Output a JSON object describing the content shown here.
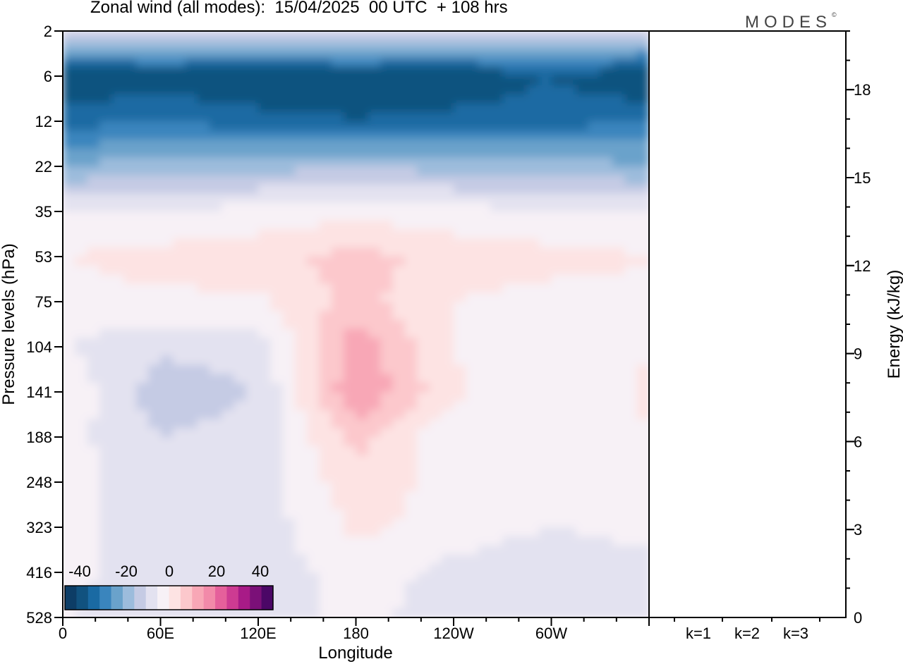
{
  "header": {
    "title": "Zonal wind (all modes):  15/04/2025  00 UTC  + 108 hrs",
    "logo": "MODES",
    "logo_mark": "©"
  },
  "chart_data": [
    {
      "type": "heatmap",
      "title": "Zonal wind (all modes):  15/04/2025  00 UTC  + 108 hrs",
      "xlabel": "Longitude",
      "ylabel": "Pressure levels (hPa)",
      "x_tick_labels": [
        "0",
        "60E",
        "120E",
        "180",
        "120W",
        "60W"
      ],
      "y_tick_labels": [
        "2",
        "6",
        "12",
        "22",
        "35",
        "53",
        "75",
        "104",
        "141",
        "188",
        "248",
        "323",
        "416",
        "528"
      ],
      "y_order": "top-to-bottom",
      "colorbar": {
        "tick_labels": [
          "-40",
          "-20",
          "0",
          "20",
          "40"
        ],
        "range": [
          -40,
          40
        ],
        "step": 5,
        "colors": [
          "#0d3d66",
          "#11527f",
          "#1a6aa3",
          "#3a85bd",
          "#6aa2cb",
          "#9cbcdc",
          "#c5cbe4",
          "#e3e2f0",
          "#f7f1f6",
          "#fde3e3",
          "#fcc8cc",
          "#f8a7b6",
          "#f28aa9",
          "#e5609b",
          "#cd3b92",
          "#a81b87",
          "#7b1078",
          "#4b0766"
        ]
      },
      "field": [
        {
          "level": "2",
          "description": "near zero to weak easterly",
          "values": [
            -5,
            -5,
            -5,
            -5,
            -5,
            -5,
            -5
          ]
        },
        {
          "level": "6",
          "values": [
            -35,
            -33,
            -35,
            -33,
            -35,
            -30,
            -36
          ]
        },
        {
          "level": "12",
          "values": [
            -27,
            -25,
            -28,
            -30,
            -28,
            -27,
            -25
          ]
        },
        {
          "level": "22",
          "values": [
            -15,
            -12,
            -12,
            -10,
            -12,
            -12,
            -15
          ]
        },
        {
          "level": "35",
          "values": [
            0,
            0,
            2,
            3,
            2,
            0,
            0
          ]
        },
        {
          "level": "53",
          "values": [
            5,
            7,
            8,
            12,
            8,
            7,
            5
          ]
        },
        {
          "level": "75",
          "values": [
            3,
            4,
            4,
            12,
            5,
            3,
            4
          ]
        },
        {
          "level": "104",
          "values": [
            0,
            -4,
            -3,
            18,
            5,
            0,
            5
          ]
        },
        {
          "level": "141",
          "values": [
            4,
            -8,
            -5,
            20,
            6,
            0,
            6
          ]
        },
        {
          "level": "188",
          "values": [
            2,
            -5,
            -3,
            12,
            0,
            0,
            5
          ]
        },
        {
          "level": "248",
          "values": [
            2,
            -3,
            -2,
            8,
            3,
            0,
            4
          ]
        },
        {
          "level": "323",
          "values": [
            1,
            -2,
            -3,
            6,
            3,
            0,
            2
          ]
        },
        {
          "level": "416",
          "values": [
            1,
            -2,
            -4,
            3,
            -2,
            -4,
            -2
          ]
        },
        {
          "level": "528",
          "values": [
            0,
            -1,
            -3,
            2,
            -3,
            -4,
            -2
          ]
        }
      ],
      "field_x": [
        "0",
        "60E",
        "120E",
        "180",
        "120W",
        "60W",
        "360"
      ]
    },
    {
      "type": "bar",
      "ylabel": "Energy (kJ/kg)",
      "categories": [
        "k=1",
        "k=2",
        "k=3"
      ],
      "values": [
        0.02,
        0.02,
        0.02
      ],
      "y_tick_labels": [
        "0",
        "3",
        "6",
        "9",
        "12",
        "15",
        "18"
      ],
      "ylim": [
        0,
        20
      ]
    }
  ]
}
